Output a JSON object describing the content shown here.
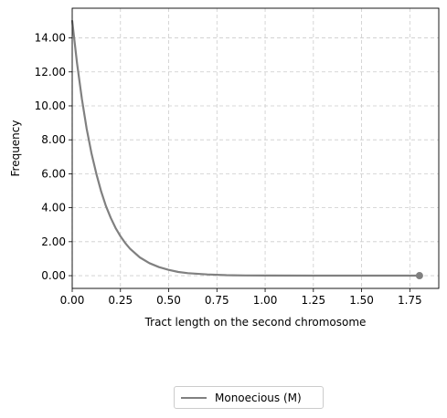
{
  "chart_data": {
    "type": "line",
    "title": "",
    "xlabel": "Tract length on the second chromosome",
    "ylabel": "Frequency",
    "xlim": [
      0,
      1.9
    ],
    "ylim": [
      -0.75,
      15.75
    ],
    "xticks": [
      0.0,
      0.25,
      0.5,
      0.75,
      1.0,
      1.25,
      1.5,
      1.75
    ],
    "xtick_labels": [
      "0.00",
      "0.25",
      "0.50",
      "0.75",
      "1.00",
      "1.25",
      "1.50",
      "1.75"
    ],
    "yticks": [
      0,
      2,
      4,
      6,
      8,
      10,
      12,
      14
    ],
    "ytick_labels": [
      "0.00",
      "2.00",
      "4.00",
      "6.00",
      "8.00",
      "10.00",
      "12.00",
      "14.00"
    ],
    "grid": true,
    "legend_position": "below",
    "series": [
      {
        "name": "Monoecious (M)",
        "color": "#808080",
        "x": [
          0.0,
          0.025,
          0.05,
          0.075,
          0.1,
          0.125,
          0.15,
          0.175,
          0.2,
          0.225,
          0.25,
          0.275,
          0.3,
          0.35,
          0.4,
          0.45,
          0.5,
          0.55,
          0.6,
          0.7,
          0.8,
          0.9,
          1.0,
          1.25,
          1.5,
          1.8
        ],
        "y": [
          15.0,
          12.5,
          10.4,
          8.65,
          7.2,
          6.0,
          4.95,
          4.1,
          3.4,
          2.8,
          2.32,
          1.92,
          1.58,
          1.08,
          0.74,
          0.5,
          0.34,
          0.22,
          0.15,
          0.07,
          0.03,
          0.015,
          0.01,
          0.0,
          0.0,
          0.0
        ],
        "end_marker": {
          "x": 1.8,
          "y": 0.0
        }
      }
    ]
  }
}
